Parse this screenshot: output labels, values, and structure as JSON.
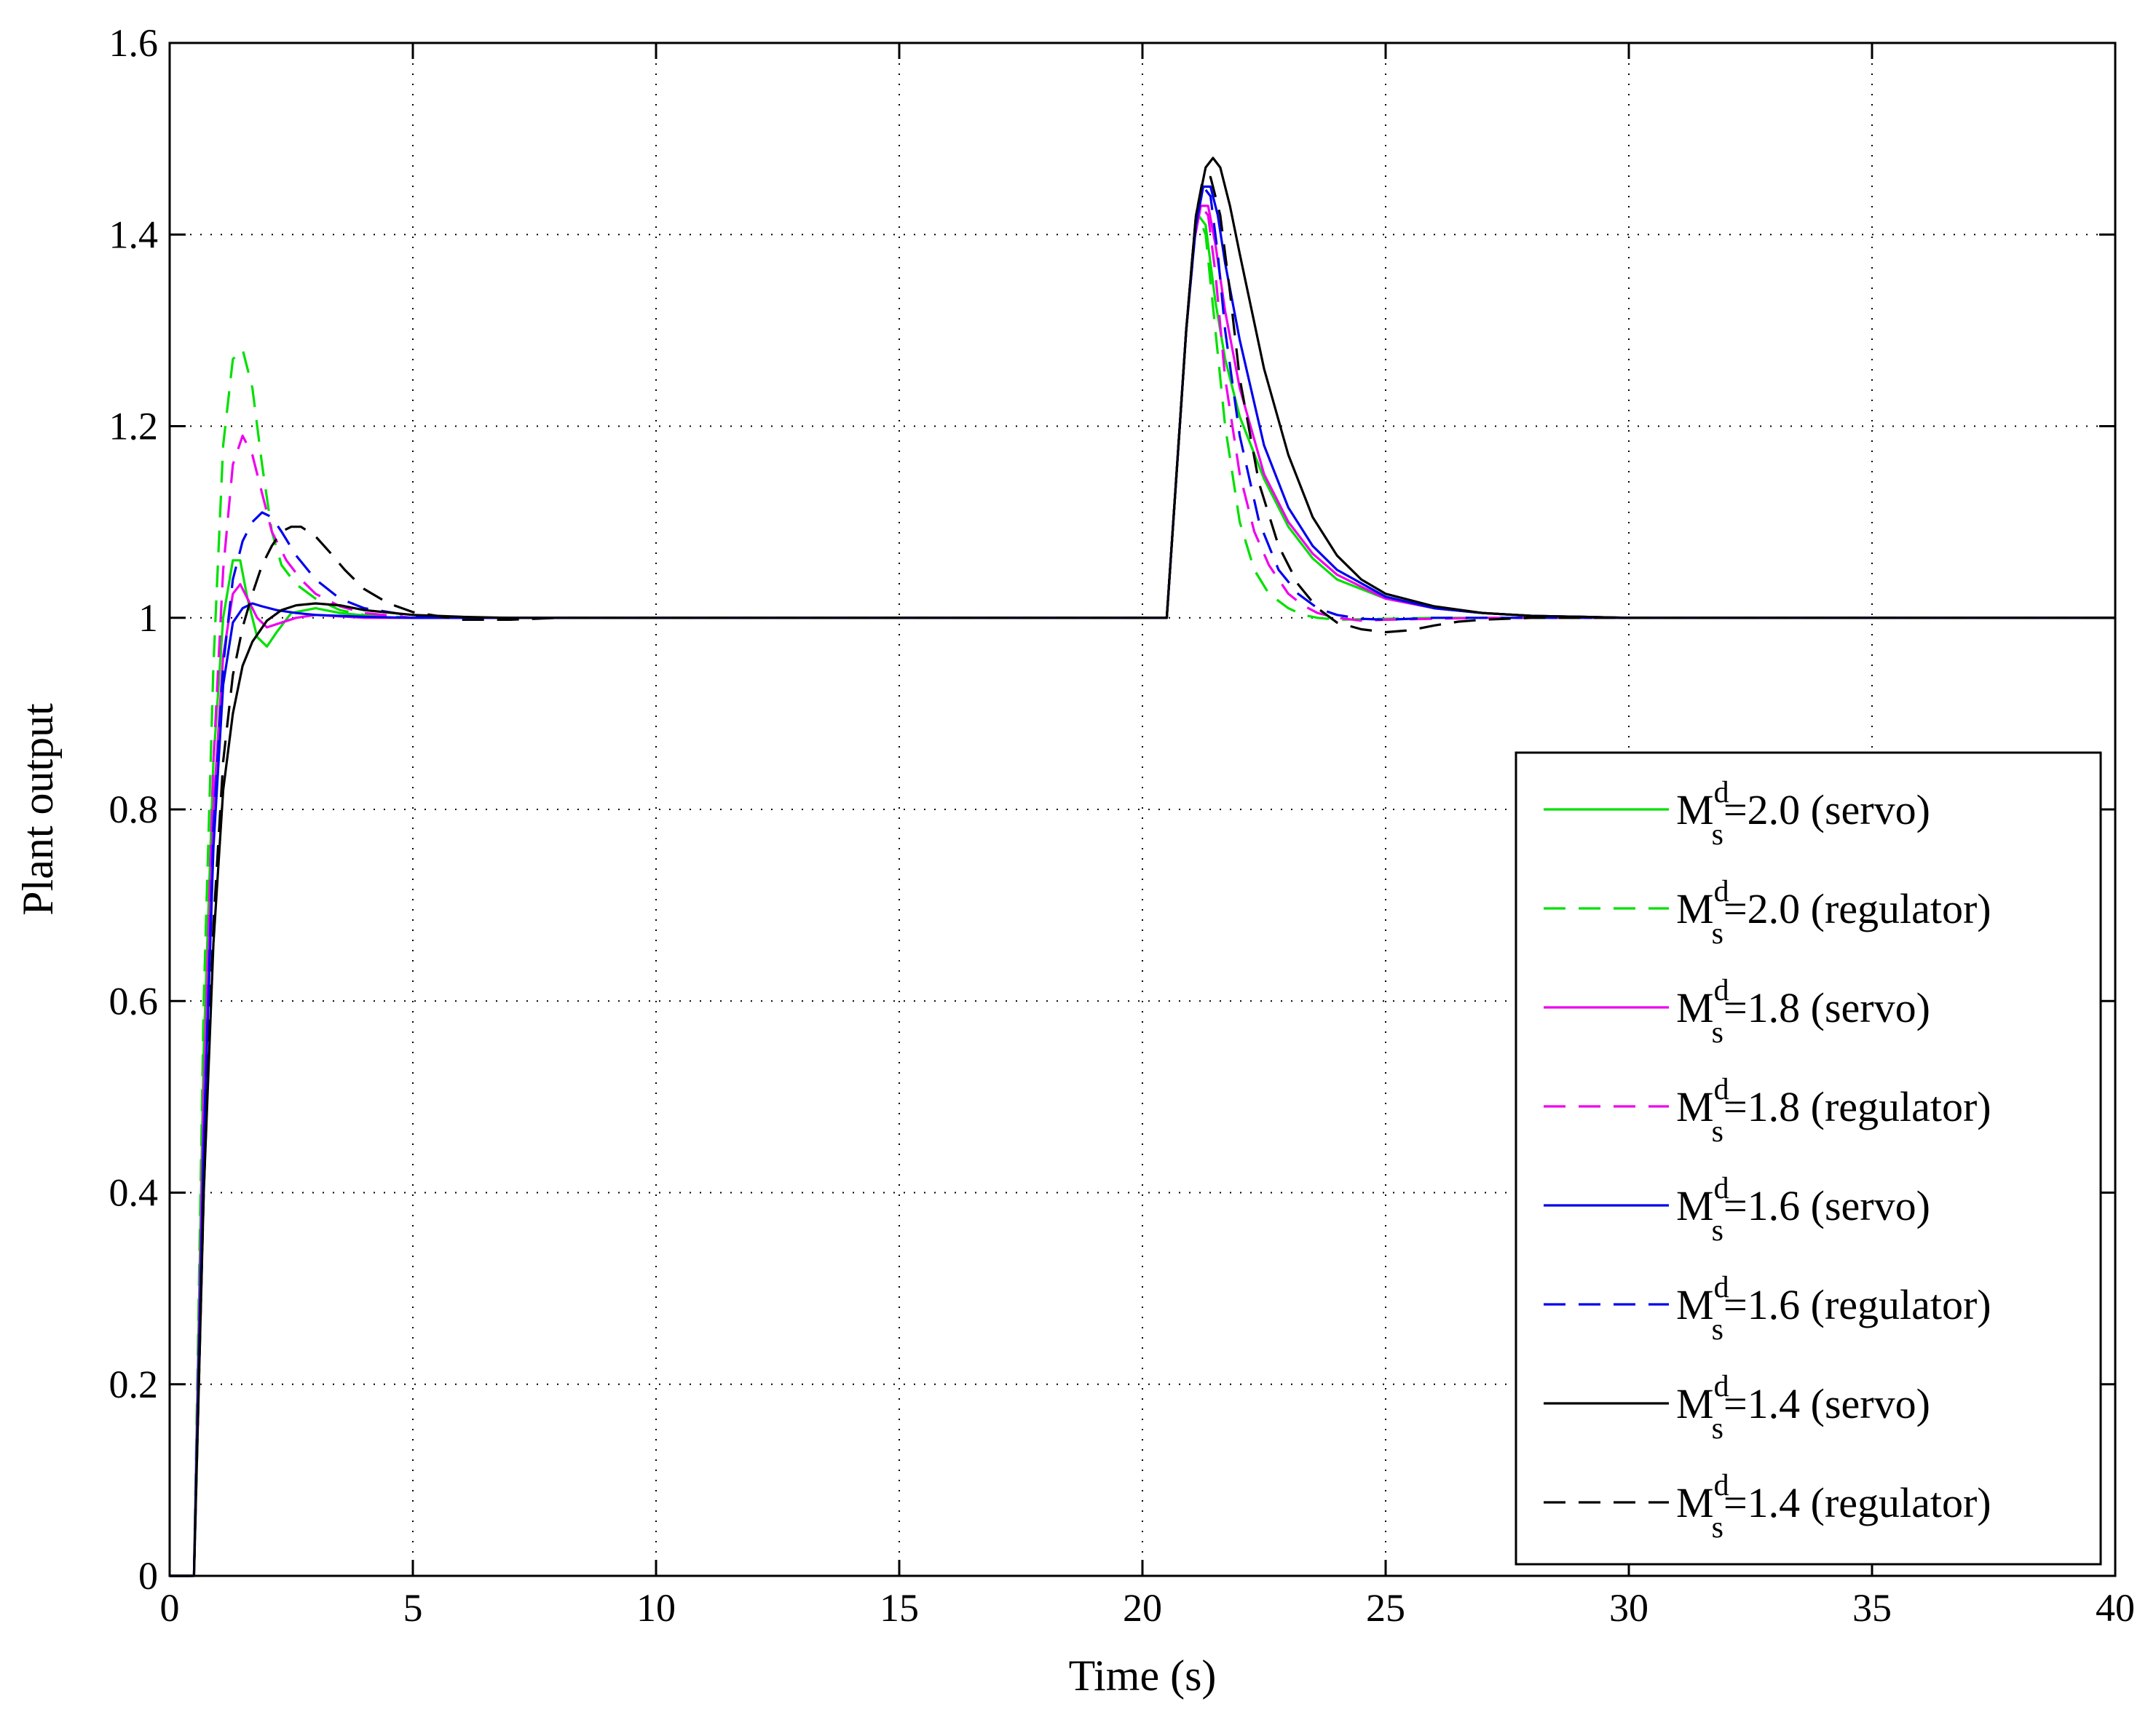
{
  "chart_data": {
    "type": "line",
    "title": "",
    "xlabel": "Time (s)",
    "ylabel": "Plant output",
    "xlim": [
      0,
      40
    ],
    "ylim": [
      0,
      1.6
    ],
    "xticks": [
      0,
      5,
      10,
      15,
      20,
      25,
      30,
      35,
      40
    ],
    "yticks": [
      0,
      0.2,
      0.4,
      0.6,
      0.8,
      1,
      1.2,
      1.4,
      1.6
    ],
    "xtick_labels": [
      "0",
      "5",
      "10",
      "15",
      "20",
      "25",
      "30",
      "35",
      "40"
    ],
    "ytick_labels": [
      "0",
      "0.2",
      "0.4",
      "0.6",
      "0.8",
      "1",
      "1.2",
      "1.4",
      "1.6"
    ],
    "grid": true,
    "legend_position": "bottom-right",
    "series": [
      {
        "name": "Ms^d=2.0 (servo)",
        "legend": {
          "base": "M",
          "sup": "d",
          "sub": "s",
          "rest": "=2.0 (servo)"
        },
        "color": "#00e000",
        "dash": "solid",
        "x": [
          0,
          0.5,
          0.7,
          0.9,
          1.1,
          1.3,
          1.45,
          1.6,
          1.8,
          2.0,
          2.2,
          2.5,
          3.0,
          3.5,
          4.5,
          6,
          10,
          20.5,
          20.7,
          20.9,
          21.05,
          21.15,
          21.3,
          21.5,
          21.7,
          22.0,
          22.5,
          23,
          23.5,
          24,
          25,
          26,
          27,
          28,
          29,
          30,
          35,
          40
        ],
        "y": [
          0,
          0,
          0.55,
          0.85,
          1.0,
          1.06,
          1.06,
          1.02,
          0.98,
          0.97,
          0.985,
          1.005,
          1.01,
          1.005,
          1.0,
          1.0,
          1.0,
          1.0,
          1.15,
          1.3,
          1.39,
          1.42,
          1.41,
          1.33,
          1.27,
          1.21,
          1.145,
          1.095,
          1.062,
          1.04,
          1.02,
          1.01,
          1.005,
          1.002,
          1.001,
          1.0,
          1.0,
          1.0
        ]
      },
      {
        "name": "Ms^d=2.0 (regulator)",
        "legend": {
          "base": "M",
          "sup": "d",
          "sub": "s",
          "rest": "=2.0 (regulator)"
        },
        "color": "#00e000",
        "dash": "long",
        "x": [
          0,
          0.5,
          0.7,
          0.9,
          1.1,
          1.3,
          1.5,
          1.7,
          1.9,
          2.1,
          2.3,
          2.6,
          3.0,
          3.5,
          4.0,
          5,
          6,
          10,
          20.5,
          20.7,
          20.9,
          21.05,
          21.15,
          21.3,
          21.5,
          21.7,
          22.0,
          22.3,
          22.6,
          23,
          23.3,
          23.6,
          24,
          25,
          26,
          27,
          30,
          35,
          40
        ],
        "y": [
          0,
          0,
          0.6,
          0.95,
          1.18,
          1.27,
          1.28,
          1.24,
          1.16,
          1.09,
          1.055,
          1.035,
          1.02,
          1.008,
          1.003,
          1.0,
          1.0,
          1.0,
          1.0,
          1.15,
          1.3,
          1.39,
          1.42,
          1.4,
          1.3,
          1.2,
          1.1,
          1.05,
          1.025,
          1.01,
          1.003,
          1.0,
          0.998,
          0.999,
          1.0,
          1.0,
          1.0,
          1.0,
          1.0
        ]
      },
      {
        "name": "Ms^d=1.8 (servo)",
        "legend": {
          "base": "M",
          "sup": "d",
          "sub": "s",
          "rest": "=1.8 (servo)"
        },
        "color": "#ee00ee",
        "dash": "solid",
        "x": [
          0,
          0.5,
          0.7,
          0.9,
          1.1,
          1.3,
          1.45,
          1.6,
          1.8,
          2.0,
          2.3,
          2.6,
          3.0,
          4.0,
          6,
          10,
          20.5,
          20.7,
          20.9,
          21.05,
          21.2,
          21.35,
          21.5,
          21.7,
          22.0,
          22.5,
          23,
          23.5,
          24,
          25,
          26,
          27,
          28,
          29,
          30,
          35,
          40
        ],
        "y": [
          0,
          0,
          0.5,
          0.8,
          0.96,
          1.025,
          1.035,
          1.02,
          1.0,
          0.99,
          0.995,
          1.0,
          1.003,
          1.0,
          1.0,
          1.0,
          1.0,
          1.15,
          1.3,
          1.39,
          1.43,
          1.43,
          1.39,
          1.32,
          1.24,
          1.15,
          1.1,
          1.067,
          1.045,
          1.02,
          1.01,
          1.005,
          1.002,
          1.001,
          1.0,
          1.0,
          1.0
        ]
      },
      {
        "name": "Ms^d=1.8 (regulator)",
        "legend": {
          "base": "M",
          "sup": "d",
          "sub": "s",
          "rest": "=1.8 (regulator)"
        },
        "color": "#ee00ee",
        "dash": "long",
        "x": [
          0,
          0.5,
          0.7,
          0.9,
          1.1,
          1.3,
          1.5,
          1.7,
          1.9,
          2.1,
          2.4,
          2.7,
          3.0,
          3.5,
          4.0,
          5,
          6,
          10,
          20.5,
          20.7,
          20.9,
          21.05,
          21.2,
          21.35,
          21.5,
          21.7,
          22.0,
          22.3,
          22.6,
          23,
          23.3,
          23.6,
          24,
          24.5,
          25,
          26,
          27,
          30,
          35,
          40
        ],
        "y": [
          0,
          0,
          0.5,
          0.85,
          1.05,
          1.16,
          1.19,
          1.17,
          1.13,
          1.09,
          1.06,
          1.04,
          1.025,
          1.012,
          1.005,
          1.0,
          1.0,
          1.0,
          1.0,
          1.15,
          1.3,
          1.39,
          1.43,
          1.42,
          1.36,
          1.25,
          1.15,
          1.09,
          1.055,
          1.025,
          1.013,
          1.005,
          1.0,
          0.997,
          0.998,
          0.999,
          1.0,
          1.0,
          1.0,
          1.0
        ]
      },
      {
        "name": "Ms^d=1.6 (servo)",
        "legend": {
          "base": "M",
          "sup": "d",
          "sub": "s",
          "rest": "=1.6 (servo)"
        },
        "color": "#0000ee",
        "dash": "solid",
        "x": [
          0,
          0.5,
          0.7,
          0.9,
          1.1,
          1.3,
          1.5,
          1.7,
          1.9,
          2.2,
          2.6,
          3.0,
          4.0,
          5,
          6,
          10,
          20.5,
          20.7,
          20.9,
          21.1,
          21.25,
          21.4,
          21.55,
          21.7,
          22.0,
          22.5,
          23,
          23.5,
          24,
          25,
          26,
          27,
          28,
          29,
          30,
          35,
          40
        ],
        "y": [
          0,
          0,
          0.45,
          0.76,
          0.93,
          0.995,
          1.01,
          1.015,
          1.012,
          1.008,
          1.005,
          1.003,
          1.001,
          1.0,
          1.0,
          1.0,
          1.0,
          1.15,
          1.3,
          1.41,
          1.45,
          1.45,
          1.42,
          1.37,
          1.29,
          1.18,
          1.115,
          1.075,
          1.05,
          1.022,
          1.01,
          1.005,
          1.002,
          1.001,
          1.0,
          1.0,
          1.0
        ]
      },
      {
        "name": "Ms^d=1.6 (regulator)",
        "legend": {
          "base": "M",
          "sup": "d",
          "sub": "s",
          "rest": "=1.6 (regulator)"
        },
        "color": "#0000ee",
        "dash": "long",
        "x": [
          0,
          0.5,
          0.7,
          0.9,
          1.1,
          1.3,
          1.5,
          1.7,
          1.9,
          2.1,
          2.3,
          2.6,
          3.0,
          3.5,
          4.0,
          5,
          6,
          7,
          10,
          20.5,
          20.7,
          20.9,
          21.1,
          21.25,
          21.4,
          21.55,
          21.7,
          22.0,
          22.4,
          22.8,
          23.2,
          23.6,
          24,
          24.5,
          25,
          25.5,
          26,
          27,
          28,
          30,
          35,
          40
        ],
        "y": [
          0,
          0,
          0.45,
          0.78,
          0.95,
          1.04,
          1.08,
          1.1,
          1.11,
          1.105,
          1.09,
          1.065,
          1.04,
          1.02,
          1.01,
          1.002,
          1.0,
          1.0,
          1.0,
          1.0,
          1.15,
          1.3,
          1.41,
          1.45,
          1.44,
          1.38,
          1.3,
          1.19,
          1.1,
          1.05,
          1.025,
          1.01,
          1.003,
          0.999,
          0.998,
          0.999,
          1.0,
          1.0,
          1.0,
          1.0,
          1.0,
          1.0
        ]
      },
      {
        "name": "Ms^d=1.4 (servo)",
        "legend": {
          "base": "M",
          "sup": "d",
          "sub": "s",
          "rest": "=1.4 (servo)"
        },
        "color": "#000000",
        "dash": "solid",
        "x": [
          0,
          0.5,
          0.7,
          0.9,
          1.1,
          1.3,
          1.5,
          1.7,
          2.0,
          2.3,
          2.6,
          3.0,
          3.5,
          4.0,
          5,
          6,
          7,
          10,
          20.5,
          20.7,
          20.9,
          21.1,
          21.3,
          21.45,
          21.6,
          21.8,
          22.0,
          22.5,
          23,
          23.5,
          24,
          24.5,
          25,
          26,
          27,
          28,
          29,
          30,
          35,
          40
        ],
        "y": [
          0,
          0,
          0.4,
          0.66,
          0.82,
          0.9,
          0.95,
          0.975,
          0.997,
          1.008,
          1.013,
          1.015,
          1.013,
          1.008,
          1.003,
          1.001,
          1.0,
          1.0,
          1.0,
          1.15,
          1.3,
          1.42,
          1.47,
          1.48,
          1.47,
          1.43,
          1.38,
          1.26,
          1.17,
          1.105,
          1.065,
          1.04,
          1.025,
          1.012,
          1.005,
          1.002,
          1.001,
          1.0,
          1.0,
          1.0
        ]
      },
      {
        "name": "Ms^d=1.4 (regulator)",
        "legend": {
          "base": "M",
          "sup": "d",
          "sub": "s",
          "rest": "=1.4 (regulator)"
        },
        "color": "#000000",
        "dash": "long",
        "x": [
          0,
          0.5,
          0.7,
          0.9,
          1.1,
          1.3,
          1.5,
          1.7,
          1.9,
          2.1,
          2.3,
          2.5,
          2.7,
          3.0,
          3.3,
          3.6,
          4.0,
          4.5,
          5,
          6,
          7,
          8,
          10,
          20.5,
          20.7,
          20.9,
          21.1,
          21.25,
          21.4,
          21.6,
          21.8,
          22.0,
          22.4,
          22.8,
          23.2,
          23.6,
          24,
          24.5,
          25,
          25.5,
          26,
          26.5,
          27,
          28,
          30,
          35,
          40
        ],
        "y": [
          0,
          0,
          0.4,
          0.68,
          0.85,
          0.94,
          0.99,
          1.025,
          1.055,
          1.075,
          1.09,
          1.095,
          1.095,
          1.085,
          1.068,
          1.05,
          1.03,
          1.015,
          1.006,
          0.998,
          0.998,
          1.0,
          1.0,
          1.0,
          1.15,
          1.3,
          1.42,
          1.46,
          1.46,
          1.42,
          1.34,
          1.25,
          1.14,
          1.075,
          1.035,
          1.01,
          0.995,
          0.988,
          0.985,
          0.987,
          0.992,
          0.996,
          0.998,
          1.0,
          1.0,
          1.0,
          1.0
        ]
      }
    ]
  }
}
